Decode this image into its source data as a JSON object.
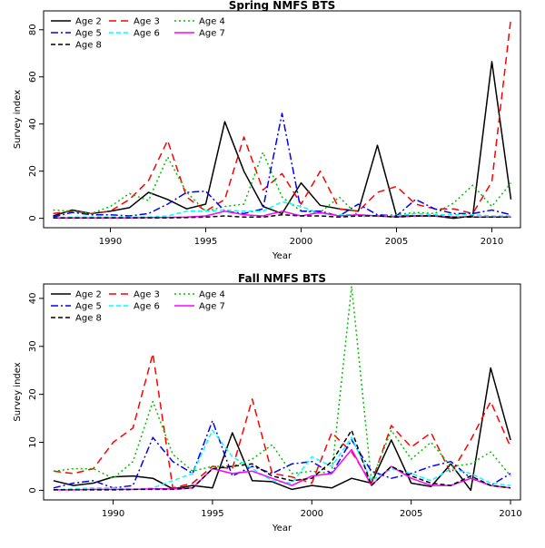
{
  "chart_data": [
    {
      "type": "line",
      "title": "Spring NMFS BTS",
      "xlabel": "Year",
      "ylabel": "Survey index",
      "xlim": [
        1986.5,
        2011.5
      ],
      "ylim": [
        -4,
        88
      ],
      "xticks": [
        1990,
        1995,
        2000,
        2005,
        2010
      ],
      "yticks": [
        0,
        20,
        40,
        60,
        80
      ],
      "legend_position": "top-left",
      "grid": false,
      "x": [
        1987,
        1988,
        1989,
        1990,
        1991,
        1992,
        1993,
        1994,
        1995,
        1996,
        1997,
        1998,
        1999,
        2000,
        2001,
        2002,
        2003,
        2004,
        2005,
        2006,
        2007,
        2008,
        2009,
        2010,
        2011
      ],
      "series": [
        {
          "name": "Age 2",
          "color": "#000000",
          "dash": "solid",
          "values": [
            1.0,
            3.5,
            2.0,
            3.0,
            4.5,
            11.0,
            8.0,
            4.0,
            6.0,
            41.0,
            20.0,
            5.0,
            2.0,
            15.0,
            5.5,
            4.0,
            3.0,
            31.0,
            1.0,
            1.0,
            1.0,
            0.0,
            1.0,
            66.5,
            8.0
          ]
        },
        {
          "name": "Age 3",
          "color": "#ff0000",
          "dash": "longdash",
          "values": [
            2.0,
            3.0,
            2.0,
            3.0,
            8.0,
            16.0,
            33.0,
            9.0,
            3.0,
            8.0,
            34.5,
            12.0,
            19.0,
            6.0,
            20.0,
            4.0,
            3.0,
            11.0,
            13.5,
            6.0,
            4.0,
            4.0,
            2.0,
            15.5,
            85.0
          ]
        },
        {
          "name": "Age 4",
          "color": "#00c000",
          "dash": "dotted",
          "values": [
            3.5,
            3.0,
            2.0,
            5.0,
            10.5,
            7.5,
            26.0,
            11.0,
            3.0,
            5.0,
            6.0,
            28.0,
            9.0,
            3.0,
            2.5,
            9.0,
            1.0,
            1.0,
            1.5,
            2.5,
            2.0,
            6.5,
            14.0,
            5.0,
            15.0
          ]
        },
        {
          "name": "Age 5",
          "color": "#0000ff",
          "dash": "dashdot",
          "values": [
            0.5,
            2.5,
            1.5,
            1.5,
            1.0,
            2.0,
            6.0,
            11.0,
            11.5,
            3.0,
            2.0,
            4.0,
            44.5,
            3.0,
            3.0,
            1.0,
            6.0,
            1.5,
            1.0,
            8.0,
            4.0,
            2.0,
            2.0,
            3.5,
            1.5
          ]
        },
        {
          "name": "Age 6",
          "color": "#00ffff",
          "dash": "dashed",
          "values": [
            0.2,
            0.5,
            0.5,
            0.5,
            0.5,
            0.5,
            1.0,
            3.0,
            3.0,
            3.5,
            3.0,
            3.0,
            7.0,
            5.0,
            2.0,
            1.5,
            1.5,
            1.0,
            1.0,
            2.0,
            1.5,
            1.5,
            1.5,
            1.0,
            1.0
          ]
        },
        {
          "name": "Age 7",
          "color": "#ff00ff",
          "dash": "solid",
          "values": [
            0.1,
            0.2,
            0.2,
            0.2,
            0.2,
            0.3,
            0.4,
            0.5,
            1.0,
            3.0,
            1.5,
            1.0,
            3.0,
            1.0,
            2.5,
            1.0,
            1.5,
            1.0,
            0.5,
            1.0,
            1.0,
            0.5,
            0.5,
            0.5,
            0.5
          ]
        },
        {
          "name": "Age 8",
          "color": "#000000",
          "dash": "dashed",
          "values": [
            0.1,
            0.1,
            0.1,
            0.2,
            0.2,
            0.2,
            0.2,
            0.3,
            0.5,
            1.0,
            0.5,
            0.5,
            1.5,
            1.0,
            1.0,
            0.5,
            1.0,
            1.0,
            0.5,
            1.0,
            1.0,
            0.5,
            0.5,
            0.5,
            0.5
          ]
        }
      ]
    },
    {
      "type": "line",
      "title": "Fall NMFS BTS",
      "xlabel": "Year",
      "ylabel": "Survey index",
      "xlim": [
        1986.5,
        2010.5
      ],
      "ylim": [
        -2,
        43
      ],
      "xticks": [
        1990,
        1995,
        2000,
        2005,
        2010
      ],
      "yticks": [
        0,
        10,
        20,
        30,
        40
      ],
      "legend_position": "top-left",
      "grid": false,
      "x": [
        1987,
        1988,
        1989,
        1990,
        1991,
        1992,
        1993,
        1994,
        1995,
        1996,
        1997,
        1998,
        1999,
        2000,
        2001,
        2002,
        2003,
        2004,
        2005,
        2006,
        2007,
        2008,
        2009,
        2010
      ],
      "series": [
        {
          "name": "Age 2",
          "color": "#000000",
          "dash": "solid",
          "values": [
            2.0,
            1.0,
            1.5,
            2.8,
            3.0,
            2.5,
            0.3,
            1.0,
            0.5,
            12.0,
            2.0,
            1.8,
            0.2,
            1.0,
            0.5,
            2.5,
            1.5,
            10.5,
            1.5,
            0.8,
            5.5,
            0.0,
            25.5,
            10.5
          ]
        },
        {
          "name": "Age 3",
          "color": "#ff0000",
          "dash": "longdash",
          "values": [
            4.0,
            3.5,
            4.5,
            10.0,
            13.0,
            28.5,
            0.5,
            1.5,
            5.0,
            4.5,
            19.0,
            3.5,
            2.8,
            1.5,
            12.0,
            8.0,
            1.5,
            13.5,
            9.0,
            12.0,
            3.5,
            10.5,
            18.5,
            9.0
          ]
        },
        {
          "name": "Age 4",
          "color": "#00c000",
          "dash": "dotted",
          "values": [
            4.0,
            4.5,
            4.5,
            2.5,
            6.0,
            18.5,
            7.5,
            4.0,
            5.0,
            5.0,
            6.5,
            9.5,
            3.5,
            4.0,
            3.5,
            42.5,
            2.0,
            12.5,
            6.5,
            10.0,
            5.0,
            5.5,
            8.0,
            3.0
          ]
        },
        {
          "name": "Age 5",
          "color": "#0000ff",
          "dash": "dashdot",
          "values": [
            0.5,
            1.5,
            2.0,
            0.5,
            1.0,
            11.0,
            6.0,
            3.5,
            14.5,
            3.0,
            5.0,
            3.5,
            5.5,
            6.0,
            3.5,
            10.5,
            4.0,
            2.5,
            3.5,
            5.0,
            6.0,
            2.5,
            1.0,
            3.5
          ]
        },
        {
          "name": "Age 6",
          "color": "#00ffff",
          "dash": "dashed",
          "values": [
            0.1,
            0.3,
            0.5,
            0.5,
            0.2,
            0.5,
            2.0,
            3.5,
            12.5,
            7.0,
            4.5,
            2.0,
            1.5,
            7.0,
            5.0,
            11.0,
            2.0,
            4.5,
            3.5,
            2.0,
            4.5,
            3.5,
            1.5,
            1.0
          ]
        },
        {
          "name": "Age 7",
          "color": "#ff00ff",
          "dash": "solid",
          "values": [
            0.1,
            0.1,
            0.2,
            0.2,
            0.2,
            0.3,
            0.3,
            0.5,
            4.5,
            3.5,
            4.0,
            2.5,
            1.0,
            3.0,
            3.5,
            8.5,
            1.0,
            5.0,
            2.5,
            1.0,
            1.0,
            2.5,
            1.0,
            0.5
          ]
        },
        {
          "name": "Age 8",
          "color": "#000000",
          "dash": "dashed",
          "values": [
            0.1,
            0.1,
            0.1,
            0.1,
            0.2,
            0.2,
            0.2,
            0.5,
            4.5,
            5.0,
            5.5,
            3.0,
            2.0,
            2.5,
            6.0,
            12.5,
            1.0,
            5.0,
            3.0,
            1.5,
            1.0,
            3.0,
            1.0,
            0.5
          ]
        }
      ]
    }
  ]
}
